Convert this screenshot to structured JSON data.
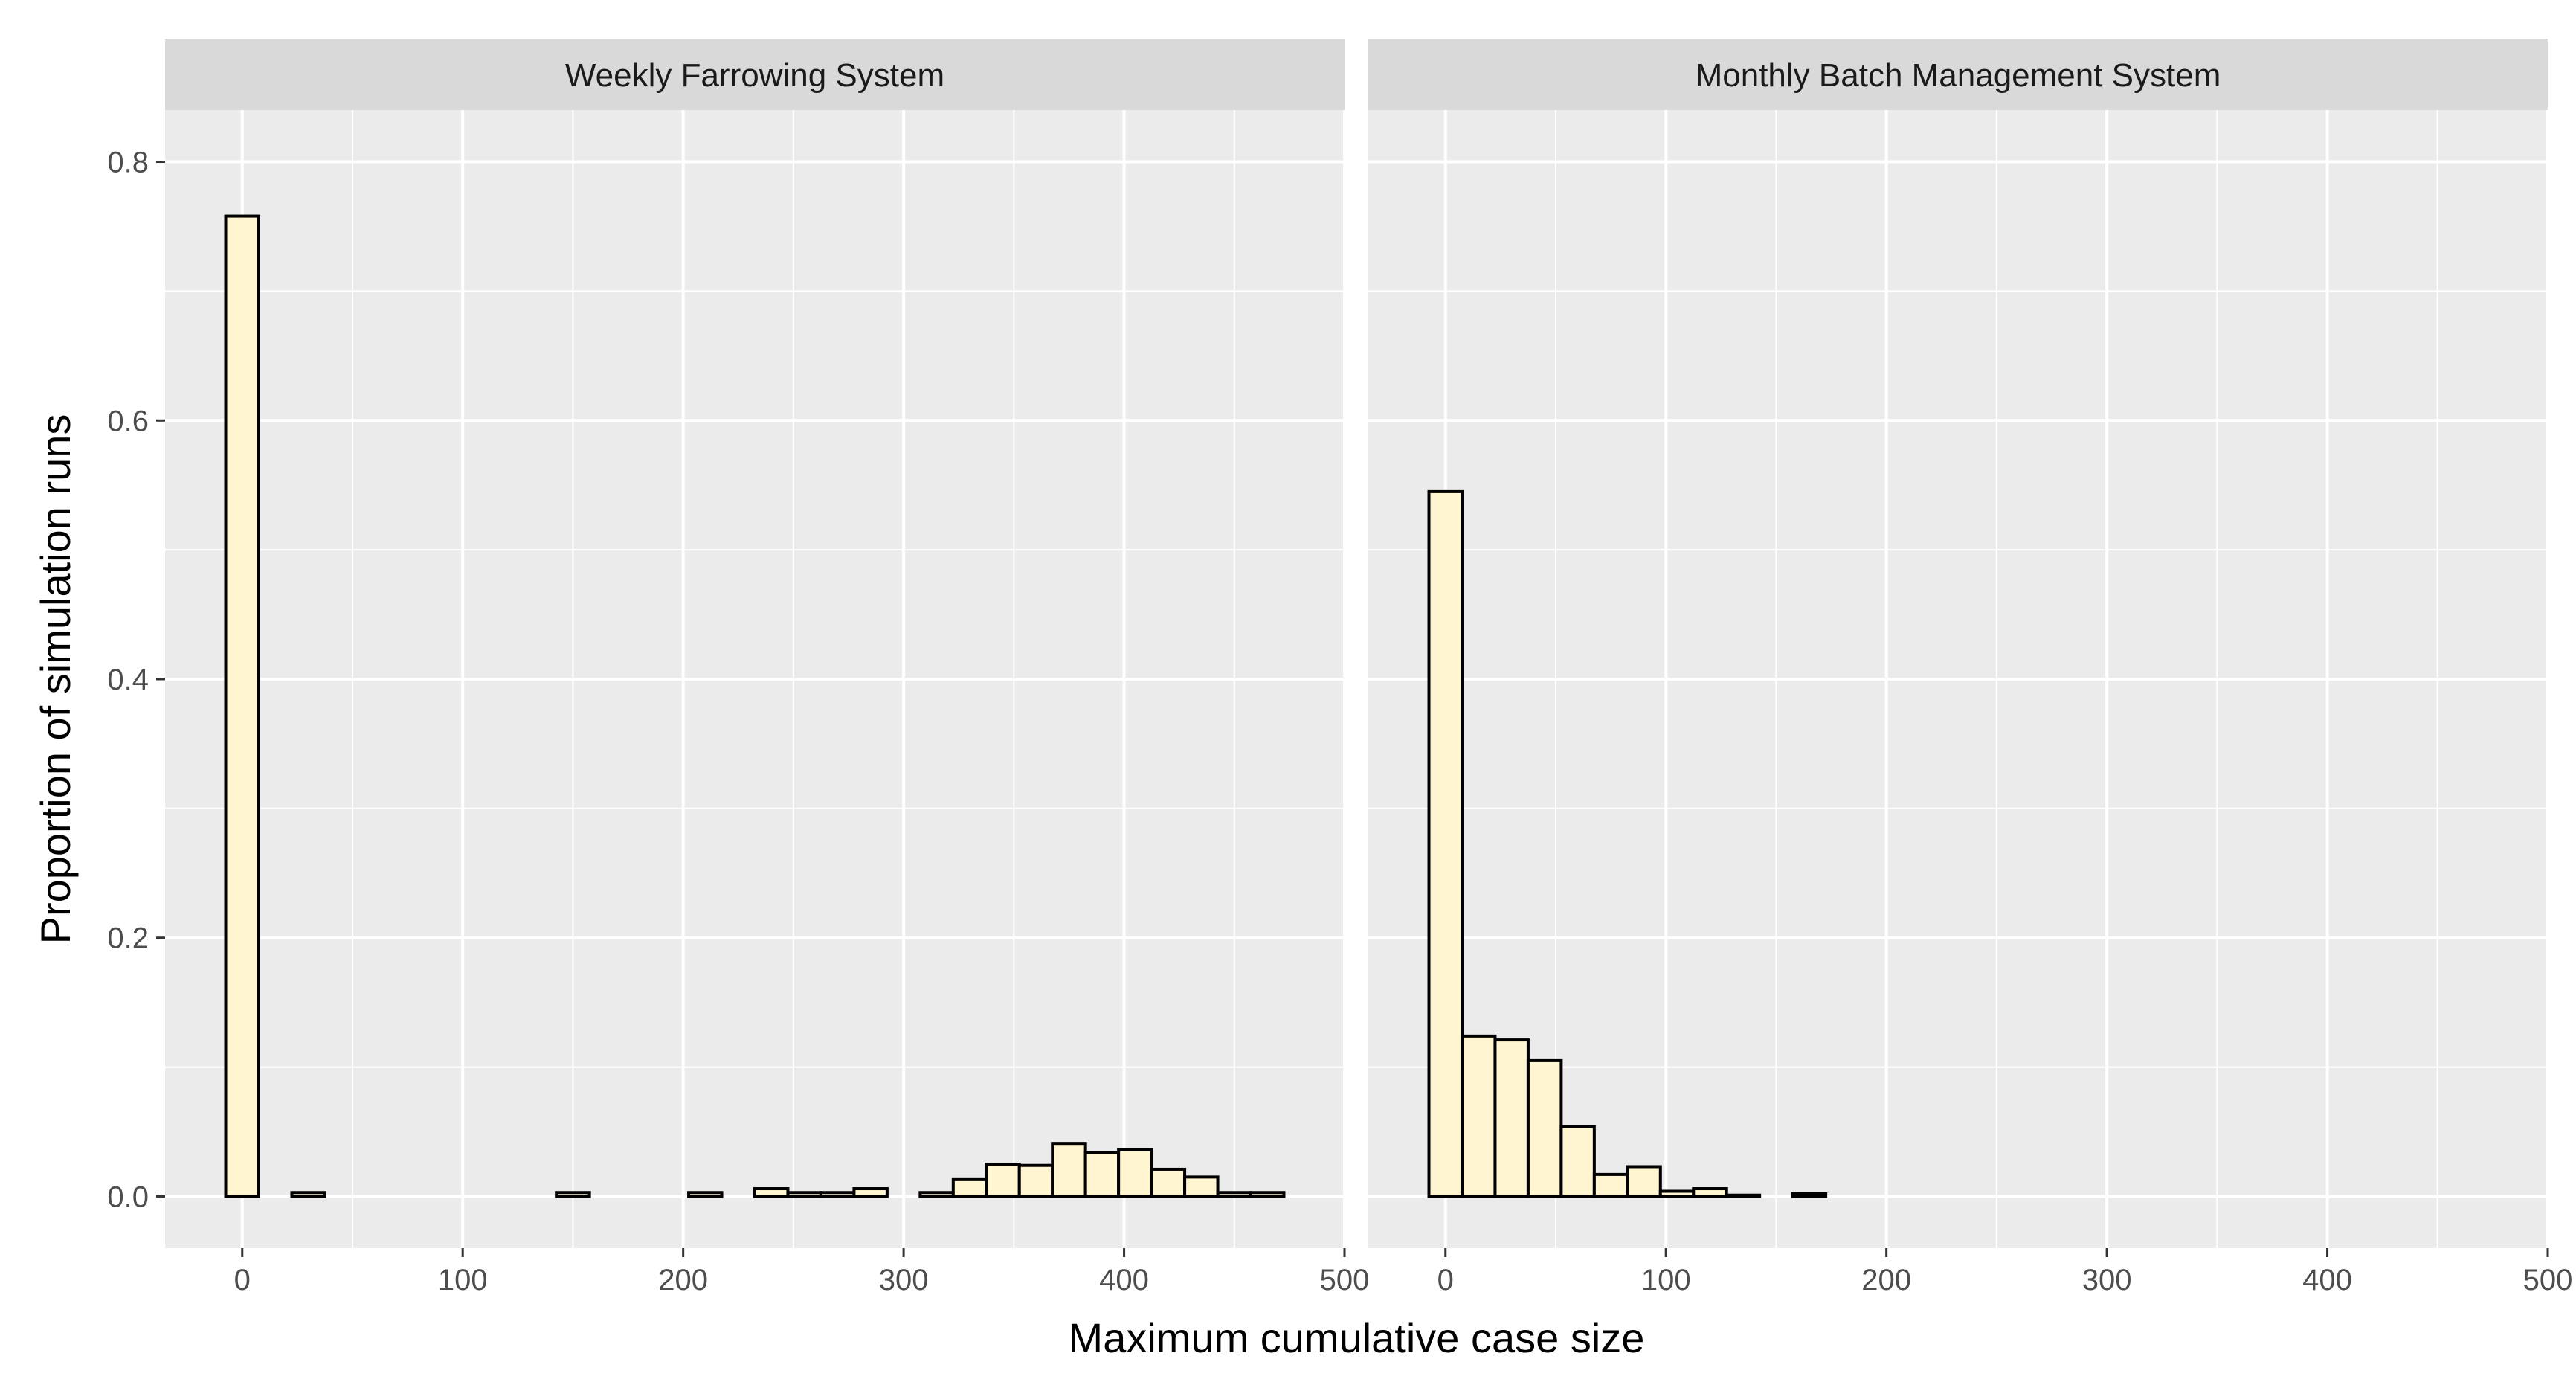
{
  "chart_data": {
    "type": "bar",
    "subtype": "faceted-histogram",
    "xlabel": "Maximum cumulative case size",
    "ylabel": "Proportion of simulation runs",
    "xlim": [
      -35,
      500
    ],
    "ylim": [
      -0.04,
      0.84
    ],
    "x_ticks": [
      0,
      100,
      200,
      300,
      400,
      500
    ],
    "x_tick_labels": [
      "0",
      "100",
      "200",
      "300",
      "400",
      "500"
    ],
    "y_ticks": [
      0.0,
      0.2,
      0.4,
      0.6,
      0.8
    ],
    "y_tick_labels": [
      "0.0",
      "0.2",
      "0.4",
      "0.6",
      "0.8"
    ],
    "bin_width": 15,
    "grid": true,
    "colors": {
      "bar_fill": "#FFF5D1",
      "bar_stroke": "#000000",
      "panel_bg": "#EBEBEB",
      "strip_bg": "#D9D9D9",
      "grid": "#FFFFFF"
    },
    "panels": [
      {
        "title": "Weekly Farrowing System",
        "bin_centers": [
          0,
          15,
          30,
          45,
          60,
          75,
          90,
          105,
          120,
          135,
          150,
          165,
          180,
          195,
          210,
          225,
          240,
          255,
          270,
          285,
          300,
          315,
          330,
          345,
          360,
          375,
          390,
          405,
          420,
          435,
          450,
          465,
          480
        ],
        "values": [
          0.758,
          0.0,
          0.003,
          0.0,
          0.0,
          0.0,
          0.0,
          0.0,
          0.0,
          0.0,
          0.003,
          0.0,
          0.0,
          0.0,
          0.003,
          0.0,
          0.006,
          0.003,
          0.003,
          0.006,
          0.0,
          0.003,
          0.013,
          0.025,
          0.024,
          0.041,
          0.034,
          0.036,
          0.021,
          0.015,
          0.003,
          0.003,
          0.0
        ]
      },
      {
        "title": "Monthly Batch Management System",
        "bin_centers": [
          0,
          15,
          30,
          45,
          60,
          75,
          90,
          105,
          120,
          135,
          150,
          165,
          180,
          195,
          210,
          225,
          240,
          255,
          270,
          285,
          300,
          315,
          330,
          345,
          360,
          375,
          390,
          405,
          420,
          435,
          450,
          465,
          480
        ],
        "values": [
          0.545,
          0.124,
          0.121,
          0.105,
          0.054,
          0.017,
          0.023,
          0.004,
          0.006,
          0.001,
          0.0,
          0.002,
          0.0,
          0.0,
          0.0,
          0.0,
          0.0,
          0.0,
          0.0,
          0.0,
          0.0,
          0.0,
          0.0,
          0.0,
          0.0,
          0.0,
          0.0,
          0.0,
          0.0,
          0.0,
          0.0,
          0.0,
          0.0
        ]
      }
    ]
  }
}
